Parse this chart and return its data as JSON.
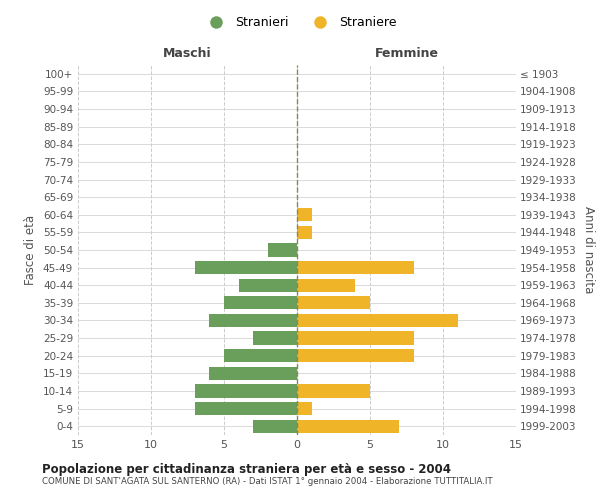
{
  "age_groups": [
    "0-4",
    "5-9",
    "10-14",
    "15-19",
    "20-24",
    "25-29",
    "30-34",
    "35-39",
    "40-44",
    "45-49",
    "50-54",
    "55-59",
    "60-64",
    "65-69",
    "70-74",
    "75-79",
    "80-84",
    "85-89",
    "90-94",
    "95-99",
    "100+"
  ],
  "birth_years": [
    "1999-2003",
    "1994-1998",
    "1989-1993",
    "1984-1988",
    "1979-1983",
    "1974-1978",
    "1969-1973",
    "1964-1968",
    "1959-1963",
    "1954-1958",
    "1949-1953",
    "1944-1948",
    "1939-1943",
    "1934-1938",
    "1929-1933",
    "1924-1928",
    "1919-1923",
    "1914-1918",
    "1909-1913",
    "1904-1908",
    "≤ 1903"
  ],
  "maschi": [
    3,
    7,
    7,
    6,
    5,
    3,
    6,
    5,
    4,
    7,
    2,
    0,
    0,
    0,
    0,
    0,
    0,
    0,
    0,
    0,
    0
  ],
  "femmine": [
    7,
    1,
    5,
    0,
    8,
    8,
    11,
    5,
    4,
    8,
    0,
    1,
    1,
    0,
    0,
    0,
    0,
    0,
    0,
    0,
    0
  ],
  "color_maschi": "#6a9e5b",
  "color_femmine": "#f0b429",
  "title": "Popolazione per cittadinanza straniera per età e sesso - 2004",
  "subtitle": "COMUNE DI SANT'AGATA SUL SANTERNO (RA) - Dati ISTAT 1° gennaio 2004 - Elaborazione TUTTITALIA.IT",
  "xlabel_left": "Maschi",
  "xlabel_right": "Femmine",
  "ylabel_left": "Fasce di età",
  "ylabel_right": "Anni di nascita",
  "legend_maschi": "Stranieri",
  "legend_femmine": "Straniere",
  "xlim": 15,
  "background_color": "#ffffff",
  "grid_color": "#cccccc"
}
